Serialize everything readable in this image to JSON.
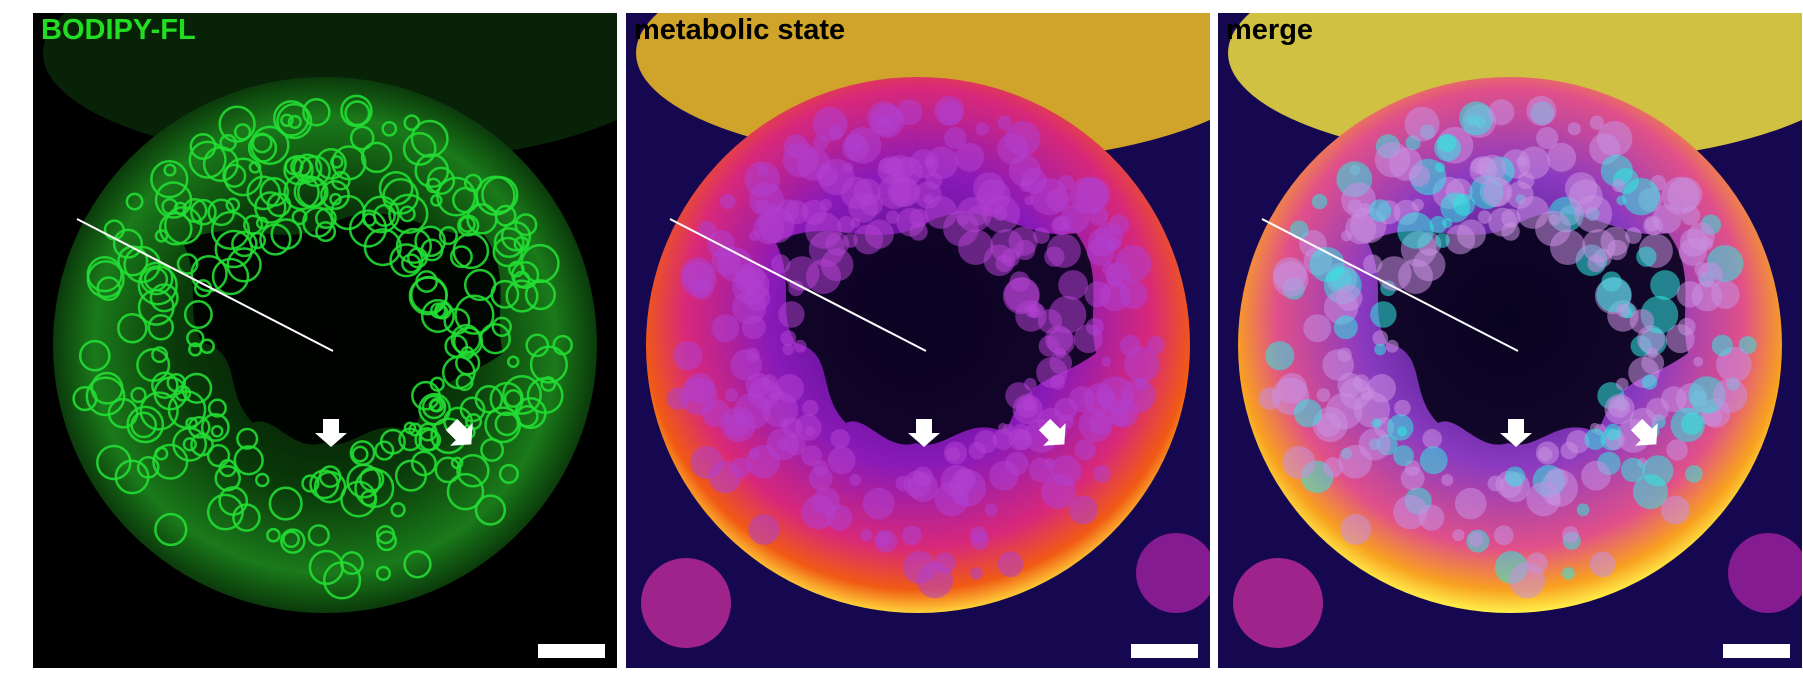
{
  "panels": [
    {
      "label": "BODIPY-FL"
    },
    {
      "label": "metabolic state"
    },
    {
      "label": "merge"
    }
  ]
}
